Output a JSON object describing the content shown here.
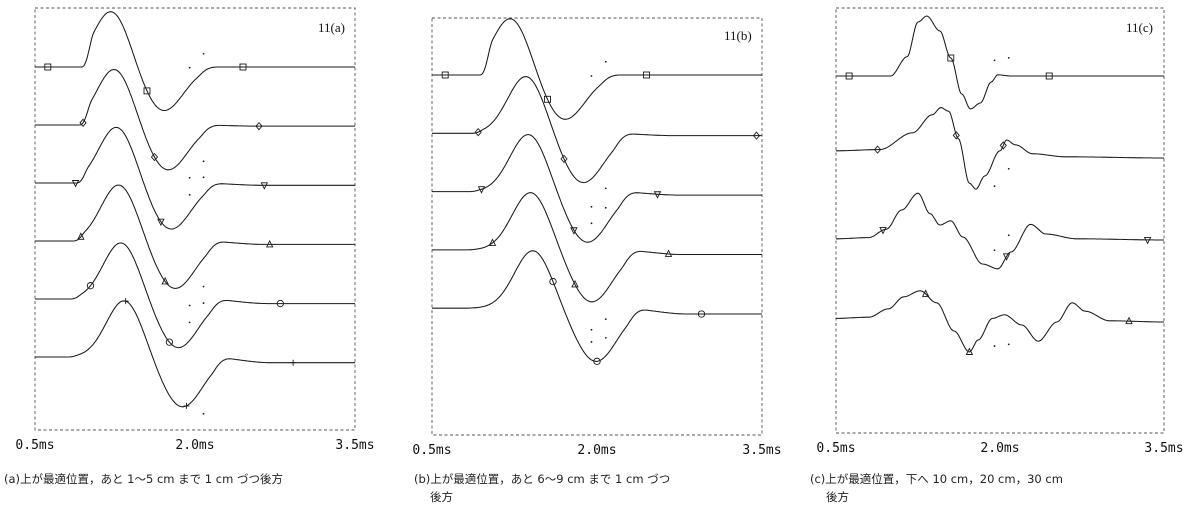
{
  "chart_data": [
    {
      "type": "line",
      "title": "11(a)",
      "x_unit": "ms",
      "xlim": [
        0.5,
        3.5
      ],
      "x_ticks": [
        "0.5ms",
        "2.0ms",
        "3.5ms"
      ],
      "caption": [
        "(a)上が最適位置，あと 1〜5 cm まで 1 cm づつ後方"
      ],
      "grid": false,
      "series": [
        {
          "peak_t": 1.22,
          "trough_t": 1.7,
          "onset_t": 0.98,
          "return_t": 2.08,
          "peak": 1.0,
          "trough": 0.78,
          "tail": 0.0,
          "marker": "square",
          "marker_t": [
            0.62,
            1.55,
            2.45
          ]
        },
        {
          "peak_t": 1.25,
          "trough_t": 1.74,
          "onset_t": 0.96,
          "return_t": 2.1,
          "peak": 1.0,
          "trough": 0.8,
          "tail": -0.02,
          "marker": "diamond",
          "marker_t": [
            0.95,
            1.62,
            2.6
          ]
        },
        {
          "peak_t": 1.27,
          "trough_t": 1.77,
          "onset_t": 0.93,
          "return_t": 2.13,
          "peak": 1.0,
          "trough": 0.82,
          "tail": -0.04,
          "marker": "triangle-down",
          "marker_t": [
            0.88,
            1.68,
            2.65
          ]
        },
        {
          "peak_t": 1.29,
          "trough_t": 1.81,
          "onset_t": 0.9,
          "return_t": 2.15,
          "peak": 1.0,
          "trough": 0.84,
          "tail": -0.06,
          "marker": "triangle-up",
          "marker_t": [
            0.93,
            1.72,
            2.7
          ]
        },
        {
          "peak_t": 1.31,
          "trough_t": 1.84,
          "onset_t": 0.87,
          "return_t": 2.18,
          "peak": 1.0,
          "trough": 0.86,
          "tail": -0.08,
          "marker": "circle",
          "marker_t": [
            1.02,
            1.76,
            2.8
          ]
        },
        {
          "peak_t": 1.34,
          "trough_t": 1.88,
          "onset_t": 0.84,
          "return_t": 2.21,
          "peak": 1.0,
          "trough": 0.88,
          "tail": -0.1,
          "marker": "plus",
          "marker_t": [
            1.35,
            1.92,
            2.92
          ]
        }
      ]
    },
    {
      "type": "line",
      "title": "11(b)",
      "x_unit": "ms",
      "xlim": [
        0.5,
        3.5
      ],
      "x_ticks": [
        "0.5ms",
        "2.0ms",
        "3.5ms"
      ],
      "caption": [
        "(b)上が最適位置，あと 6〜9 cm まで 1 cm づつ",
        "後方"
      ],
      "grid": false,
      "series": [
        {
          "peak_t": 1.22,
          "trough_t": 1.7,
          "onset_t": 0.98,
          "return_t": 2.08,
          "peak": 1.0,
          "trough": 0.78,
          "tail": 0.0,
          "marker": "square",
          "marker_t": [
            0.62,
            1.55,
            2.45
          ]
        },
        {
          "peak_t": 1.36,
          "trough_t": 1.87,
          "onset_t": 0.9,
          "return_t": 2.2,
          "peak": 1.0,
          "trough": 0.86,
          "tail": -0.04,
          "marker": "diamond",
          "marker_t": [
            0.92,
            1.7,
            3.45
          ]
        },
        {
          "peak_t": 1.38,
          "trough_t": 1.91,
          "onset_t": 0.87,
          "return_t": 2.24,
          "peak": 1.0,
          "trough": 0.88,
          "tail": -0.06,
          "marker": "triangle-down",
          "marker_t": [
            0.95,
            1.79,
            2.55
          ]
        },
        {
          "peak_t": 1.4,
          "trough_t": 1.95,
          "onset_t": 0.84,
          "return_t": 2.28,
          "peak": 1.0,
          "trough": 0.9,
          "tail": -0.08,
          "marker": "triangle-up",
          "marker_t": [
            1.05,
            1.8,
            2.65
          ]
        },
        {
          "peak_t": 1.42,
          "trough_t": 1.99,
          "onset_t": 0.81,
          "return_t": 2.32,
          "peak": 1.0,
          "trough": 0.92,
          "tail": -0.1,
          "marker": "circle",
          "marker_t": [
            1.6,
            2.0,
            2.95
          ]
        }
      ]
    },
    {
      "type": "line",
      "title": "11(c)",
      "x_unit": "ms",
      "xlim": [
        0.5,
        3.5
      ],
      "x_ticks": [
        "0.5ms",
        "2.0ms",
        "3.5ms"
      ],
      "caption": [
        "(c)上が最適位置，下へ 10 cm，20 cm，30 cm",
        "後方"
      ],
      "grid": false,
      "series": [
        {
          "marker": "square",
          "points": [
            [
              0.5,
              0
            ],
            [
              1.0,
              0
            ],
            [
              1.15,
              0.32
            ],
            [
              1.25,
              0.9
            ],
            [
              1.33,
              1.0
            ],
            [
              1.45,
              0.75
            ],
            [
              1.55,
              0.3
            ],
            [
              1.65,
              -0.3
            ],
            [
              1.73,
              -0.55
            ],
            [
              1.82,
              -0.45
            ],
            [
              1.92,
              -0.1
            ],
            [
              1.98,
              0.02
            ],
            [
              2.1,
              0.0
            ],
            [
              3.5,
              0.0
            ]
          ],
          "marker_t": [
            0.62,
            1.55,
            2.45
          ]
        },
        {
          "marker": "diamond",
          "points": [
            [
              0.5,
              0.12
            ],
            [
              0.9,
              0.14
            ],
            [
              1.2,
              0.42
            ],
            [
              1.38,
              0.72
            ],
            [
              1.46,
              0.84
            ],
            [
              1.53,
              0.78
            ],
            [
              1.62,
              0.32
            ],
            [
              1.72,
              -0.42
            ],
            [
              1.78,
              -0.52
            ],
            [
              1.86,
              -0.3
            ],
            [
              2.0,
              0.12
            ],
            [
              2.06,
              0.3
            ],
            [
              2.14,
              0.22
            ],
            [
              2.3,
              0.07
            ],
            [
              2.6,
              0.02
            ],
            [
              3.5,
              0.0
            ]
          ],
          "marker_t": [
            0.88,
            1.6,
            2.03
          ]
        },
        {
          "marker": "triangle-down",
          "points": [
            [
              0.5,
              0.02
            ],
            [
              0.8,
              0.04
            ],
            [
              0.96,
              0.18
            ],
            [
              1.1,
              0.5
            ],
            [
              1.25,
              0.78
            ],
            [
              1.36,
              0.44
            ],
            [
              1.45,
              0.25
            ],
            [
              1.55,
              0.32
            ],
            [
              1.66,
              0.05
            ],
            [
              1.84,
              -0.4
            ],
            [
              1.98,
              -0.48
            ],
            [
              2.1,
              -0.2
            ],
            [
              2.28,
              0.26
            ],
            [
              2.42,
              0.1
            ],
            [
              2.7,
              0.02
            ],
            [
              3.5,
              0.0
            ]
          ],
          "marker_t": [
            0.93,
            2.06,
            3.35
          ]
        },
        {
          "marker": "triangle-up",
          "points": [
            [
              0.5,
              0.06
            ],
            [
              0.8,
              0.08
            ],
            [
              0.98,
              0.22
            ],
            [
              1.12,
              0.42
            ],
            [
              1.27,
              0.52
            ],
            [
              1.42,
              0.32
            ],
            [
              1.58,
              -0.15
            ],
            [
              1.72,
              -0.5
            ],
            [
              1.8,
              -0.3
            ],
            [
              1.93,
              0.06
            ],
            [
              2.04,
              0.12
            ],
            [
              2.2,
              -0.05
            ],
            [
              2.35,
              -0.32
            ],
            [
              2.52,
              0.0
            ],
            [
              2.66,
              0.32
            ],
            [
              2.78,
              0.18
            ],
            [
              3.0,
              0.02
            ],
            [
              3.5,
              0.0
            ]
          ],
          "marker_t": [
            1.32,
            1.72,
            3.18
          ]
        }
      ]
    }
  ]
}
